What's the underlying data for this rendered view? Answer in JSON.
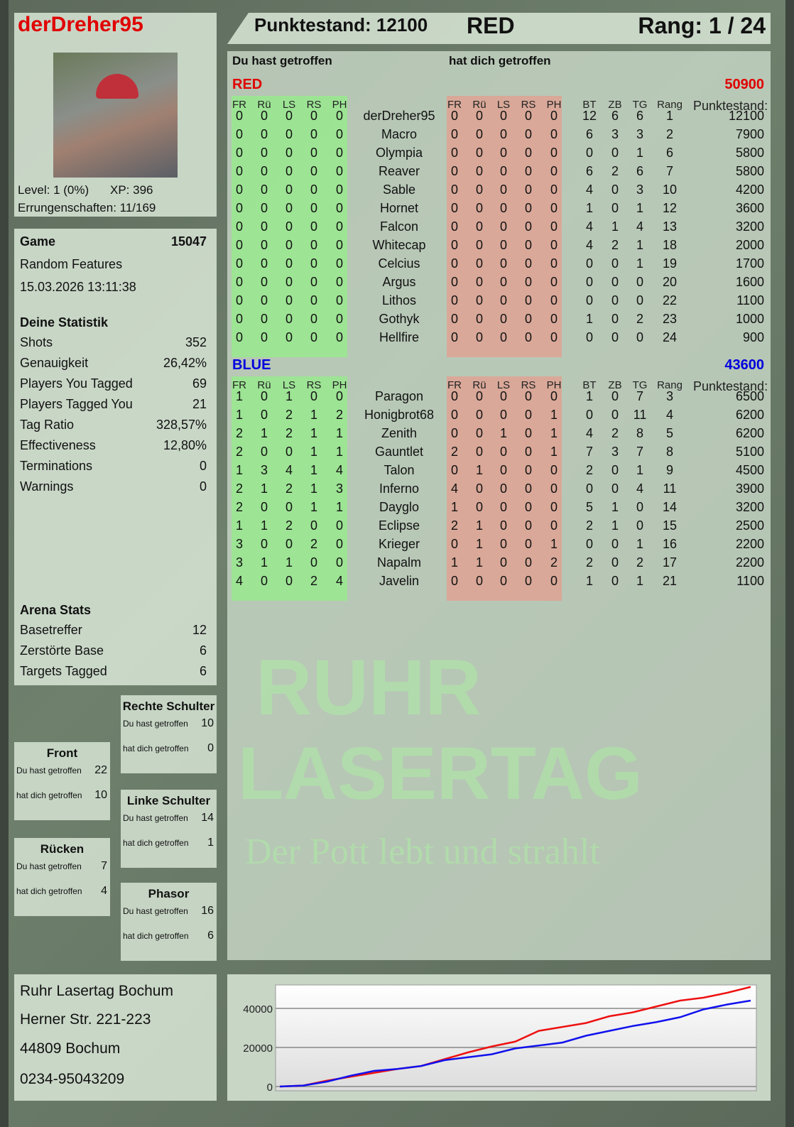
{
  "header": {
    "player": "derDreher95",
    "score_label": "Punktestand: 12100",
    "team": "RED",
    "rank_label": "Rang: 1 / 24"
  },
  "profile": {
    "level": "Level: 1 (0%)",
    "xp": "XP: 396",
    "achievements": "Errungenschaften: 11/169"
  },
  "game": {
    "label": "Game",
    "id": "15047",
    "mode": "Random Features",
    "datetime": "15.03.2026 13:11:38"
  },
  "stats": {
    "title": "Deine Statistik",
    "items": [
      {
        "label": "Shots",
        "value": "352"
      },
      {
        "label": "Genauigkeit",
        "value": "26,42%"
      },
      {
        "label": "Players You Tagged",
        "value": "69"
      },
      {
        "label": "Players Tagged You",
        "value": "21"
      },
      {
        "label": "Tag Ratio",
        "value": "328,57%"
      },
      {
        "label": "Effectiveness",
        "value": "12,80%"
      },
      {
        "label": "Terminations",
        "value": "0"
      },
      {
        "label": "Warnings",
        "value": "0"
      }
    ]
  },
  "arena": {
    "title": "Arena Stats",
    "items": [
      {
        "label": "Basetreffer",
        "value": "12"
      },
      {
        "label": "Zerstörte Base",
        "value": "6"
      },
      {
        "label": "Targets Tagged",
        "value": "6"
      }
    ]
  },
  "zones": {
    "hit_label": "Du hast getroffen",
    "got_label": "hat dich getroffen",
    "rechte": {
      "title": "Rechte Schulter",
      "hit": "10",
      "got": "0"
    },
    "front": {
      "title": "Front",
      "hit": "22",
      "got": "10"
    },
    "linke": {
      "title": "Linke Schulter",
      "hit": "14",
      "got": "1"
    },
    "ruecken": {
      "title": "Rücken",
      "hit": "7",
      "got": "4"
    },
    "phasor": {
      "title": "Phasor",
      "hit": "16",
      "got": "6"
    }
  },
  "address": [
    "Ruhr Lasertag Bochum",
    "Herner Str. 221-223",
    "44809 Bochum",
    "0234-95043209"
  ],
  "watermark": {
    "line1": "RUHR",
    "line2": "LASERTAG",
    "slogan": "Der Pott lebt und strahlt"
  },
  "table": {
    "you_hit": "Du hast getroffen",
    "hit_you": "hat dich getroffen",
    "zone_cols": [
      "FR",
      "Rü",
      "LS",
      "RS",
      "PH"
    ],
    "stat_cols": [
      "BT",
      "ZB",
      "TG",
      "Rang"
    ],
    "score_col": "Punktestand:",
    "teams": [
      {
        "name": "RED",
        "total": "50900",
        "color": "#e00000",
        "players": [
          [
            "derDreher95",
            [
              0,
              0,
              0,
              0,
              0
            ],
            [
              0,
              0,
              0,
              0,
              0
            ],
            [
              12,
              6,
              6,
              1
            ],
            12100
          ],
          [
            "Macro",
            [
              0,
              0,
              0,
              0,
              0
            ],
            [
              0,
              0,
              0,
              0,
              0
            ],
            [
              6,
              3,
              3,
              2
            ],
            7900
          ],
          [
            "Olympia",
            [
              0,
              0,
              0,
              0,
              0
            ],
            [
              0,
              0,
              0,
              0,
              0
            ],
            [
              0,
              0,
              1,
              6
            ],
            5800
          ],
          [
            "Reaver",
            [
              0,
              0,
              0,
              0,
              0
            ],
            [
              0,
              0,
              0,
              0,
              0
            ],
            [
              6,
              2,
              6,
              7
            ],
            5800
          ],
          [
            "Sable",
            [
              0,
              0,
              0,
              0,
              0
            ],
            [
              0,
              0,
              0,
              0,
              0
            ],
            [
              4,
              0,
              3,
              10
            ],
            4200
          ],
          [
            "Hornet",
            [
              0,
              0,
              0,
              0,
              0
            ],
            [
              0,
              0,
              0,
              0,
              0
            ],
            [
              1,
              0,
              1,
              12
            ],
            3600
          ],
          [
            "Falcon",
            [
              0,
              0,
              0,
              0,
              0
            ],
            [
              0,
              0,
              0,
              0,
              0
            ],
            [
              4,
              1,
              4,
              13
            ],
            3200
          ],
          [
            "Whitecap",
            [
              0,
              0,
              0,
              0,
              0
            ],
            [
              0,
              0,
              0,
              0,
              0
            ],
            [
              4,
              2,
              1,
              18
            ],
            2000
          ],
          [
            "Celcius",
            [
              0,
              0,
              0,
              0,
              0
            ],
            [
              0,
              0,
              0,
              0,
              0
            ],
            [
              0,
              0,
              1,
              19
            ],
            1700
          ],
          [
            "Argus",
            [
              0,
              0,
              0,
              0,
              0
            ],
            [
              0,
              0,
              0,
              0,
              0
            ],
            [
              0,
              0,
              0,
              20
            ],
            1600
          ],
          [
            "Lithos",
            [
              0,
              0,
              0,
              0,
              0
            ],
            [
              0,
              0,
              0,
              0,
              0
            ],
            [
              0,
              0,
              0,
              22
            ],
            1100
          ],
          [
            "Gothyk",
            [
              0,
              0,
              0,
              0,
              0
            ],
            [
              0,
              0,
              0,
              0,
              0
            ],
            [
              1,
              0,
              2,
              23
            ],
            1000
          ],
          [
            "Hellfire",
            [
              0,
              0,
              0,
              0,
              0
            ],
            [
              0,
              0,
              0,
              0,
              0
            ],
            [
              0,
              0,
              0,
              24
            ],
            900
          ]
        ]
      },
      {
        "name": "BLUE",
        "total": "43600",
        "color": "#0000dd",
        "players": [
          [
            "Paragon",
            [
              1,
              0,
              1,
              0,
              0
            ],
            [
              0,
              0,
              0,
              0,
              0
            ],
            [
              1,
              0,
              7,
              3
            ],
            6500
          ],
          [
            "Honigbrot68",
            [
              1,
              0,
              2,
              1,
              2
            ],
            [
              0,
              0,
              0,
              0,
              1
            ],
            [
              0,
              0,
              11,
              4
            ],
            6200
          ],
          [
            "Zenith",
            [
              2,
              1,
              2,
              1,
              1
            ],
            [
              0,
              0,
              1,
              0,
              1
            ],
            [
              4,
              2,
              8,
              5
            ],
            6200
          ],
          [
            "Gauntlet",
            [
              2,
              0,
              0,
              1,
              1
            ],
            [
              2,
              0,
              0,
              0,
              1
            ],
            [
              7,
              3,
              7,
              8
            ],
            5100
          ],
          [
            "Talon",
            [
              1,
              3,
              4,
              1,
              4
            ],
            [
              0,
              1,
              0,
              0,
              0
            ],
            [
              2,
              0,
              1,
              9
            ],
            4500
          ],
          [
            "Inferno",
            [
              2,
              1,
              2,
              1,
              3
            ],
            [
              4,
              0,
              0,
              0,
              0
            ],
            [
              0,
              0,
              4,
              11
            ],
            3900
          ],
          [
            "Dayglo",
            [
              2,
              0,
              0,
              1,
              1
            ],
            [
              1,
              0,
              0,
              0,
              0
            ],
            [
              5,
              1,
              0,
              14
            ],
            3200
          ],
          [
            "Eclipse",
            [
              1,
              1,
              2,
              0,
              0
            ],
            [
              2,
              1,
              0,
              0,
              0
            ],
            [
              2,
              1,
              0,
              15
            ],
            2500
          ],
          [
            "Krieger",
            [
              3,
              0,
              0,
              2,
              0
            ],
            [
              0,
              1,
              0,
              0,
              1
            ],
            [
              0,
              0,
              1,
              16
            ],
            2200
          ],
          [
            "Napalm",
            [
              3,
              1,
              1,
              0,
              0
            ],
            [
              1,
              1,
              0,
              0,
              2
            ],
            [
              2,
              0,
              2,
              17
            ],
            2200
          ],
          [
            "Javelin",
            [
              4,
              0,
              0,
              2,
              4
            ],
            [
              0,
              0,
              0,
              0,
              0
            ],
            [
              1,
              0,
              1,
              21
            ],
            1100
          ]
        ]
      }
    ]
  },
  "chart_data": {
    "type": "line",
    "ylim": [
      0,
      52000
    ],
    "yticks": [
      0,
      20000,
      40000
    ],
    "grid": true,
    "series": [
      {
        "color": "#ee1111",
        "values": [
          0,
          500,
          3000,
          5000,
          7000,
          9000,
          10500,
          14000,
          17500,
          20500,
          23000,
          28500,
          30500,
          32500,
          36000,
          38000,
          41000,
          44000,
          45500,
          48000,
          51000
        ]
      },
      {
        "color": "#1111ee",
        "values": [
          0,
          500,
          2500,
          5500,
          8000,
          9000,
          10500,
          13500,
          15000,
          16500,
          19500,
          21000,
          22500,
          26000,
          28500,
          31000,
          33000,
          35500,
          39500,
          42000,
          44000
        ]
      }
    ]
  }
}
